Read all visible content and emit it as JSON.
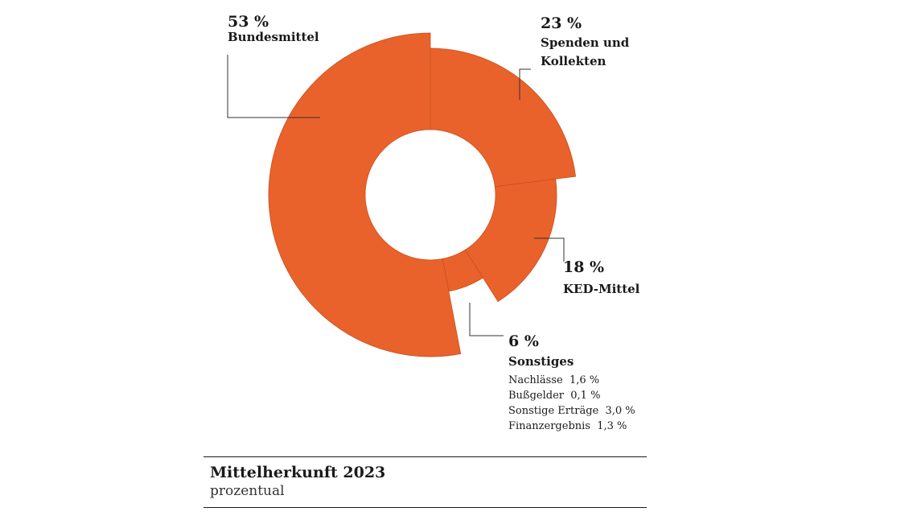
{
  "chart_data": {
    "type": "pie",
    "title": "Mittelherkunft 2023",
    "subtitle": "prozentual",
    "color": "#e9622b",
    "slices": [
      {
        "label": "Spenden und Kollekten",
        "pct_label": "23 %",
        "value": 23
      },
      {
        "label": "KED-Mittel",
        "pct_label": "18 %",
        "value": 18
      },
      {
        "label": "Sonstiges",
        "pct_label": "6 %",
        "value": 6,
        "breakdown": [
          {
            "label": "Nachlässe",
            "value_text": "1,6 %",
            "value": 1.6
          },
          {
            "label": "Bußgelder",
            "value_text": "0,1 %",
            "value": 0.1
          },
          {
            "label": "Sonstige Erträge",
            "value_text": "3,0 %",
            "value": 3.0
          },
          {
            "label": "Finanzergebnis",
            "value_text": "1,3 %",
            "value": 1.3
          }
        ]
      },
      {
        "label": "Bundesmittel",
        "pct_label": "53 %",
        "value": 53
      }
    ]
  }
}
